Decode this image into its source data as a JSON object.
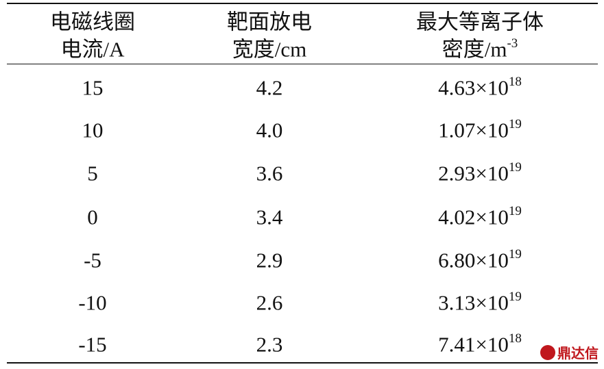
{
  "table": {
    "header": [
      {
        "lines": [
          "电磁线圈",
          "电流/A"
        ]
      },
      {
        "lines": [
          "靶面放电",
          "宽度/cm"
        ]
      },
      {
        "lines": [
          "最大等离子体",
          "密度/m"
        ],
        "sup": "-3"
      }
    ],
    "rows": [
      [
        "15",
        "4.2",
        {
          "base": "4.63×10",
          "exp": "18"
        }
      ],
      [
        "10",
        "4.0",
        {
          "base": "1.07×10",
          "exp": "19"
        }
      ],
      [
        "5",
        "3.6",
        {
          "base": "2.93×10",
          "exp": "19"
        }
      ],
      [
        "0",
        "3.4",
        {
          "base": "4.02×10",
          "exp": "19"
        }
      ],
      [
        "-5",
        "2.9",
        {
          "base": "6.80×10",
          "exp": "19"
        }
      ],
      [
        "-10",
        "2.6",
        {
          "base": "3.13×10",
          "exp": "19"
        }
      ],
      [
        "-15",
        "2.3",
        {
          "base": "7.41×10",
          "exp": "18"
        }
      ]
    ]
  },
  "watermark": "鼎达信"
}
